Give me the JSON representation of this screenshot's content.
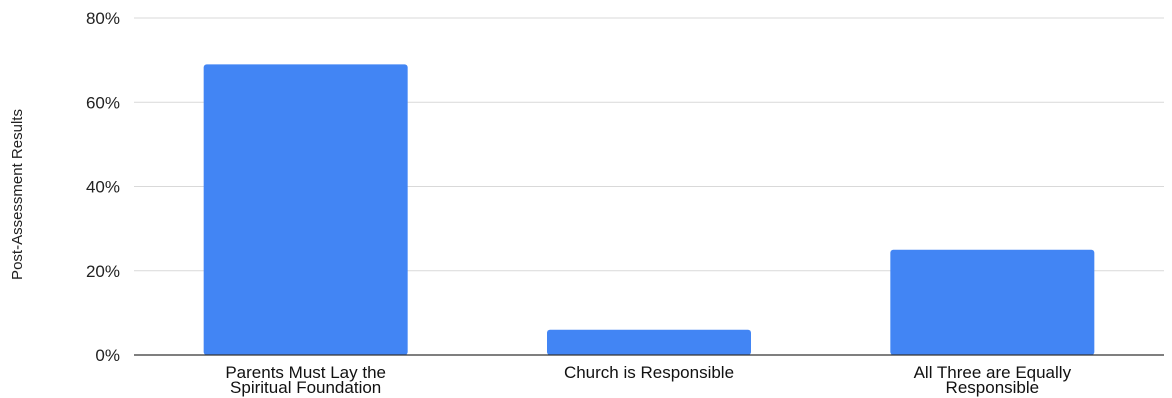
{
  "chart_data": {
    "type": "bar",
    "title": "",
    "xlabel": "",
    "ylabel": "Post-Assessment Results",
    "ylim": [
      0,
      80
    ],
    "yticks": [
      0,
      20,
      40,
      60,
      80
    ],
    "ytick_labels": [
      "0%",
      "20%",
      "40%",
      "60%",
      "80%"
    ],
    "grid": true,
    "categories": [
      [
        "Parents Must Lay the",
        "Spiritual Foundation"
      ],
      [
        "Church is Responsible"
      ],
      [
        "All Three are Equally",
        "Responsible"
      ]
    ],
    "values": [
      69,
      6,
      25
    ],
    "bar_color": "#4285f4"
  }
}
